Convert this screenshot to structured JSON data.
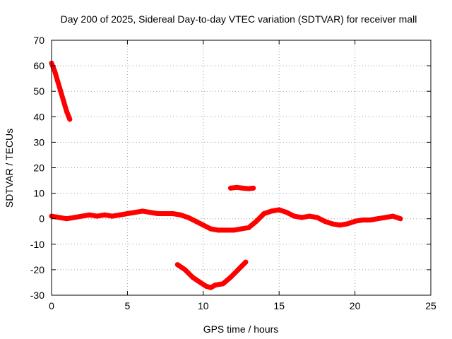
{
  "chart_data": {
    "type": "scatter",
    "title": "Day 200 of 2025, Sidereal Day-to-day VTEC variation (SDTVAR) for receiver mall",
    "xlabel": "GPS time / hours",
    "ylabel": "SDTVAR / TECUs",
    "xlim": [
      0,
      25
    ],
    "ylim": [
      -30,
      70
    ],
    "xticks": [
      0,
      5,
      10,
      15,
      20,
      25
    ],
    "yticks": [
      -30,
      -20,
      -10,
      0,
      10,
      20,
      30,
      40,
      50,
      60,
      70
    ],
    "grid": true,
    "series_color": "#ff0000",
    "series": [
      {
        "name": "main-band",
        "x": [
          0,
          0.5,
          1,
          1.5,
          2,
          2.5,
          3,
          3.5,
          4,
          4.5,
          5,
          5.5,
          6,
          6.5,
          7,
          7.5,
          8,
          8.5,
          9,
          9.5,
          10,
          10.5,
          11,
          11.5,
          12,
          12.5,
          13,
          13.5,
          14,
          14.5,
          15,
          15.5,
          16,
          16.5,
          17,
          17.5,
          18,
          18.5,
          19,
          19.5,
          20,
          20.5,
          21,
          21.5,
          22,
          22.5,
          23
        ],
        "y": [
          1,
          0.5,
          0,
          0.5,
          1,
          1.5,
          1,
          1.5,
          1,
          1.5,
          2,
          2.5,
          3,
          2.5,
          2,
          2,
          2,
          1.5,
          0.5,
          -1,
          -2.5,
          -4,
          -4.5,
          -4.5,
          -4.5,
          -4,
          -3.5,
          -1,
          2,
          3,
          3.5,
          2.5,
          1,
          0.5,
          1,
          0.5,
          -1,
          -2,
          -2.5,
          -2,
          -1,
          -0.5,
          -0.5,
          0,
          0.5,
          1,
          0
        ]
      },
      {
        "name": "dip-arc",
        "x": [
          8.3,
          8.8,
          9.3,
          9.8,
          10.2,
          10.5,
          10.8,
          11.3,
          11.8,
          12.3,
          12.8
        ],
        "y": [
          -18,
          -20,
          -23,
          -25,
          -26.5,
          -27,
          -26,
          -25.5,
          -23,
          -20,
          -17
        ]
      },
      {
        "name": "early-decay",
        "x": [
          0,
          0.2,
          0.4,
          0.6,
          0.8,
          1.0,
          1.2
        ],
        "y": [
          61,
          58,
          54,
          50,
          46,
          42,
          39
        ]
      },
      {
        "name": "short-segment",
        "x": [
          11.8,
          12.2,
          12.6,
          13.0,
          13.3
        ],
        "y": [
          12,
          12.3,
          12,
          11.8,
          12
        ]
      }
    ]
  }
}
